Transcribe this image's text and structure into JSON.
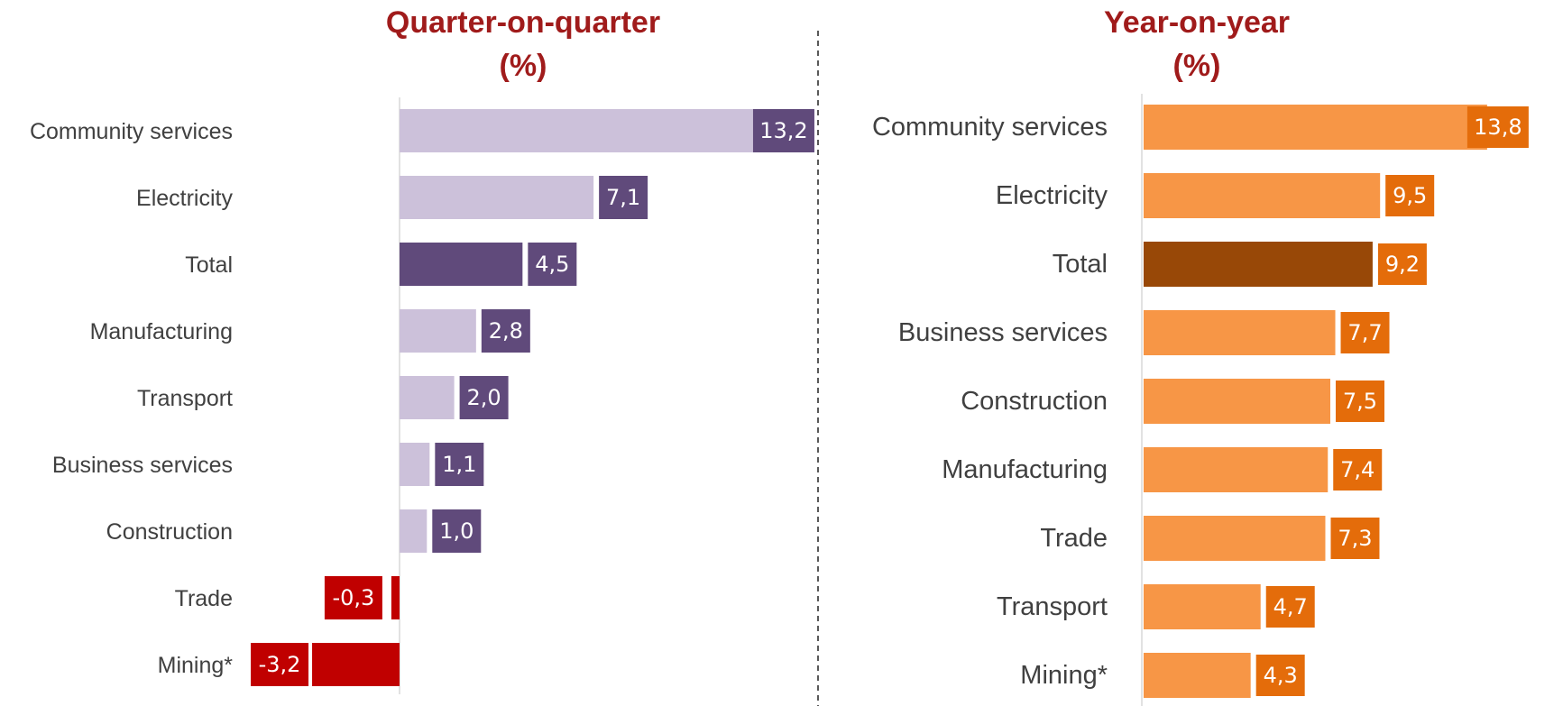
{
  "chart_data": [
    {
      "type": "bar",
      "orientation": "horizontal",
      "title": "Quarter-on-quarter",
      "subtitle": "(%)",
      "categories": [
        "Community services",
        "Electricity",
        "Total",
        "Manufacturing",
        "Transport",
        "Business services",
        "Construction",
        "Trade",
        "Mining*"
      ],
      "values": [
        13.2,
        7.1,
        4.5,
        2.8,
        2.0,
        1.1,
        1.0,
        -0.3,
        -3.2
      ],
      "value_labels": [
        "13,2",
        "7,1",
        "4,5",
        "2,8",
        "2,0",
        "1,1",
        "1,0",
        "-0,3",
        "-3,2"
      ],
      "xlim": [
        -6.5,
        17
      ],
      "grid": false,
      "colors": {
        "bar": "#ccc1da",
        "highlight_bar": "#604a7b",
        "label_box": "#604a7b",
        "negative_bar": "#c00000",
        "negative_label_box": "#c00000"
      },
      "highlight_category": "Total"
    },
    {
      "type": "bar",
      "orientation": "horizontal",
      "title": "Year-on-year",
      "subtitle": "(%)",
      "categories": [
        "Community services",
        "Electricity",
        "Total",
        "Business services",
        "Construction",
        "Manufacturing",
        "Trade",
        "Transport",
        "Mining*"
      ],
      "values": [
        13.8,
        9.5,
        9.2,
        7.7,
        7.5,
        7.4,
        7.3,
        4.7,
        4.3
      ],
      "value_labels": [
        "13,8",
        "9,5",
        "9,2",
        "7,7",
        "7,5",
        "7,4",
        "7,3",
        "4,7",
        "4,3"
      ],
      "xlim": [
        0,
        15.5
      ],
      "grid": false,
      "colors": {
        "bar": "#f79646",
        "highlight_bar": "#984807",
        "label_box": "#e46c0a"
      },
      "highlight_category": "Total"
    }
  ]
}
